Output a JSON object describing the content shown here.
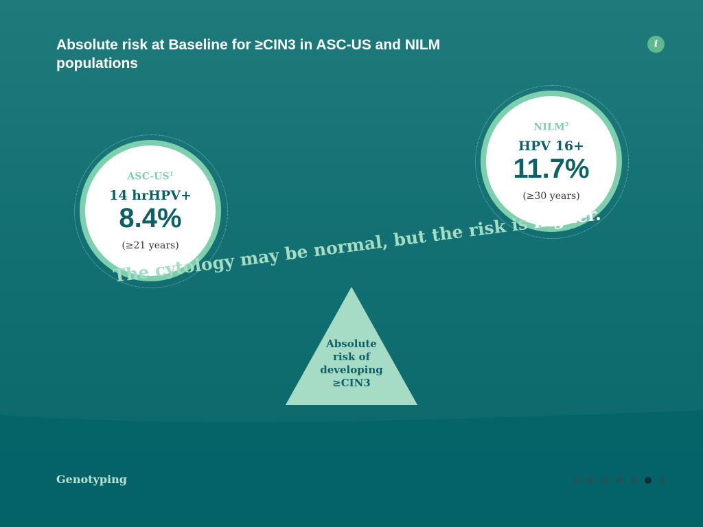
{
  "header": {
    "title": "Absolute risk at Baseline for ≥CIN3 in ASC-US and NILM populations",
    "info_label": "i"
  },
  "asc_us": {
    "label": "ASC-US",
    "ref": "1",
    "test": "14 hrHPV+",
    "value": "8.4%",
    "age": "(≥21 years)"
  },
  "nilm": {
    "label": "NILM",
    "ref": "2",
    "test": "HPV 16+",
    "value": "11.7%",
    "age": "(≥30 years)"
  },
  "tagline": {
    "text": "The cytology may be normal, but the risk is ",
    "highlight": "higher."
  },
  "fulcrum": {
    "line1": "Absolute",
    "line2": "risk of",
    "line3": "developing",
    "line4": "≥CIN3"
  },
  "footer": {
    "section": "Genotyping",
    "page_count": 7,
    "active_page": 6
  },
  "colors": {
    "background": "#137072",
    "accent_mint": "#7ecfae",
    "dark_teal": "#0f5f66",
    "info_green": "#5fb98f"
  }
}
